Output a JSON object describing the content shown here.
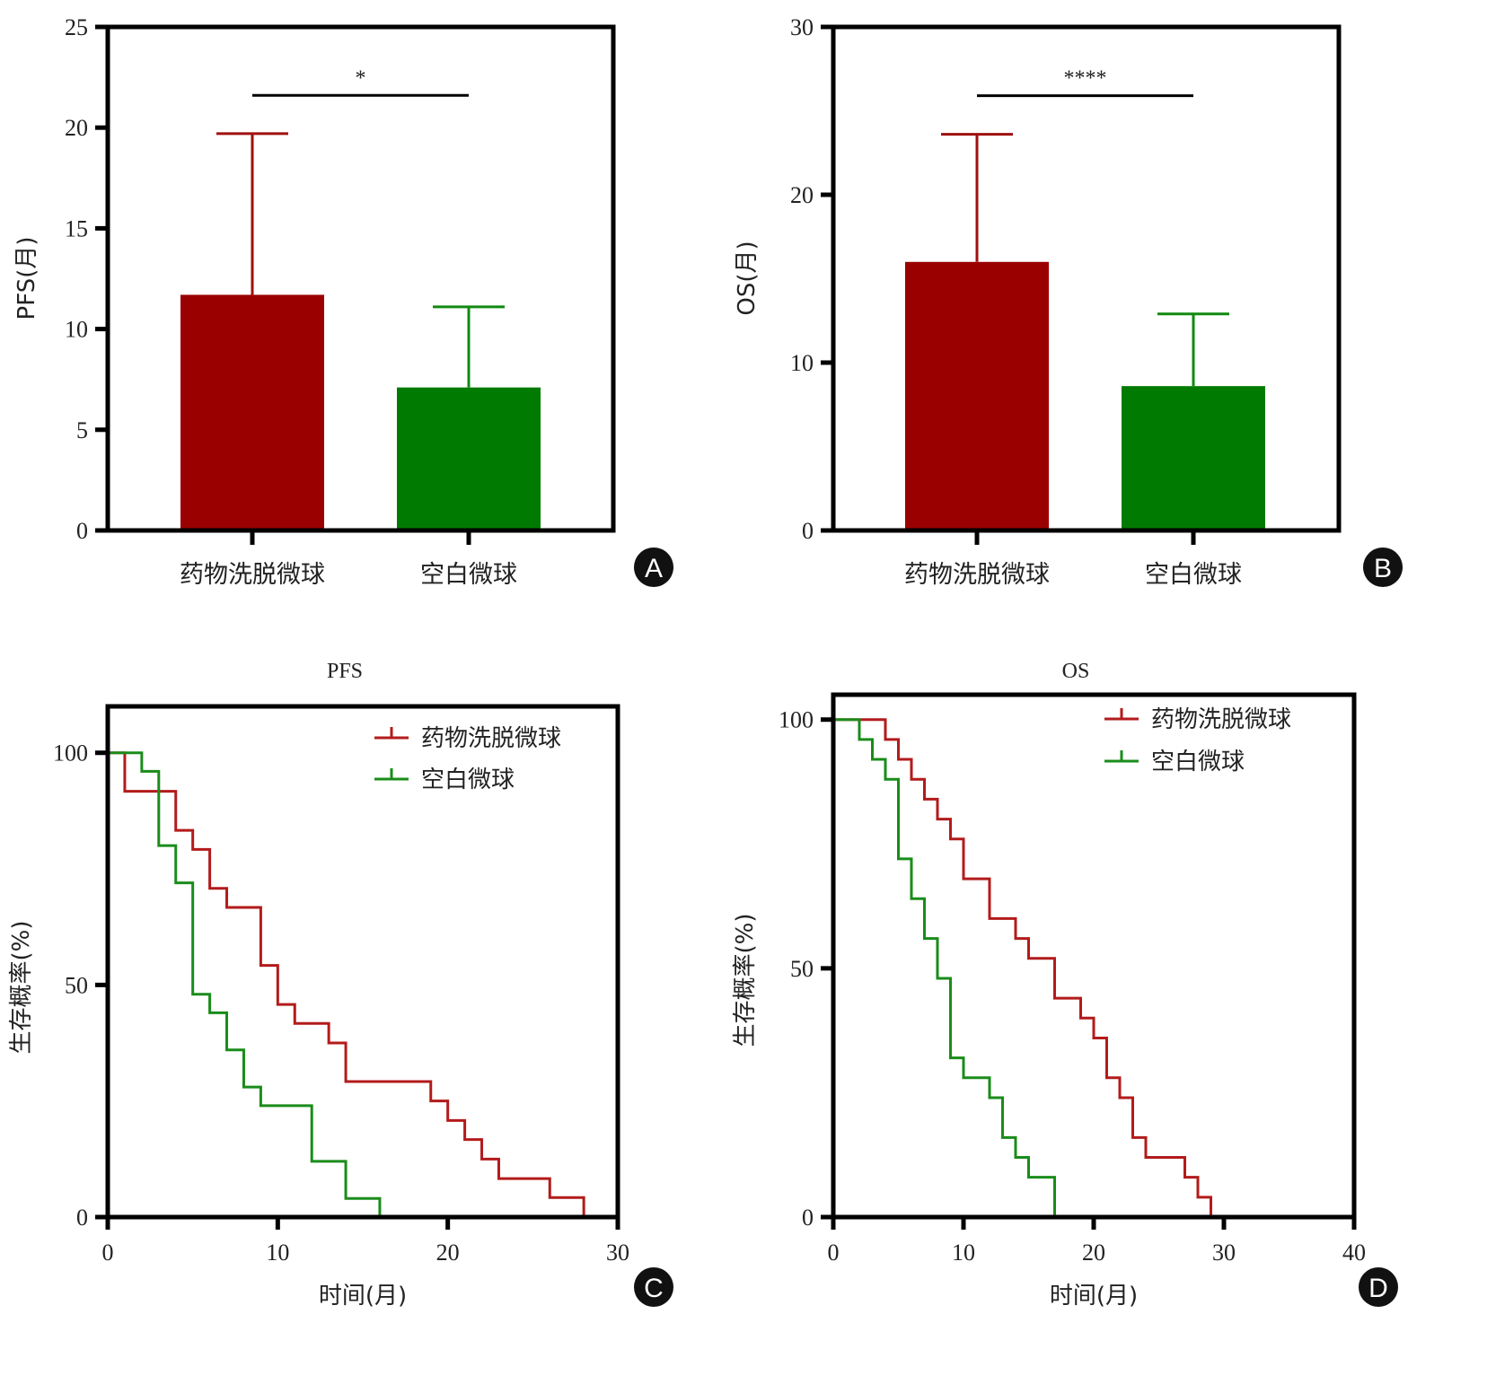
{
  "chart_data": [
    {
      "panel": "A",
      "type": "bar",
      "title": "",
      "xlabel": "",
      "ylabel": "PFS(月)",
      "ylim": [
        0,
        25
      ],
      "yticks": [
        0,
        5,
        10,
        15,
        20,
        25
      ],
      "categories": [
        "药物洗脱微球",
        "空白微球"
      ],
      "values": [
        11.7,
        7.1
      ],
      "error_upper": [
        19.7,
        11.1
      ],
      "colors": [
        "#9b0000",
        "#007a00"
      ],
      "error_colors": [
        "#a01010",
        "#108a10"
      ],
      "significance": {
        "label": "*",
        "y": 21.6
      }
    },
    {
      "panel": "B",
      "type": "bar",
      "title": "",
      "xlabel": "",
      "ylabel": "OS(月)",
      "ylim": [
        0,
        30
      ],
      "yticks": [
        0,
        10,
        20,
        30
      ],
      "categories": [
        "药物洗脱微球",
        "空白微球"
      ],
      "values": [
        16.0,
        8.6
      ],
      "error_upper": [
        23.6,
        12.9
      ],
      "colors": [
        "#9b0000",
        "#007a00"
      ],
      "error_colors": [
        "#a01010",
        "#108a10"
      ],
      "significance": {
        "label": "****",
        "y": 25.9
      }
    },
    {
      "panel": "C",
      "type": "line",
      "subtype": "kaplan-meier",
      "title": "PFS",
      "xlabel": "时间(月)",
      "ylabel": "生存概率(%)",
      "xlim": [
        0,
        30
      ],
      "ylim": [
        0,
        110
      ],
      "xticks": [
        0,
        10,
        20,
        30
      ],
      "yticks": [
        0,
        50,
        100
      ],
      "legend_position": "top-right",
      "series": [
        {
          "name": "药物洗脱微球",
          "color": "#b31b1b",
          "steps": [
            [
              0,
              100
            ],
            [
              1,
              91.7
            ],
            [
              4,
              83.3
            ],
            [
              5,
              79.2
            ],
            [
              6,
              70.8
            ],
            [
              7,
              66.7
            ],
            [
              9,
              54.2
            ],
            [
              10,
              45.8
            ],
            [
              11,
              41.7
            ],
            [
              13,
              37.5
            ],
            [
              14,
              29.2
            ],
            [
              19,
              25
            ],
            [
              20,
              20.8
            ],
            [
              21,
              16.7
            ],
            [
              22,
              12.5
            ],
            [
              23,
              8.3
            ],
            [
              26,
              4.2
            ],
            [
              28,
              0
            ]
          ]
        },
        {
          "name": "空白微球",
          "color": "#1a8c1a",
          "steps": [
            [
              0,
              100
            ],
            [
              2,
              96
            ],
            [
              3,
              80
            ],
            [
              4,
              72
            ],
            [
              5,
              48
            ],
            [
              6,
              44
            ],
            [
              7,
              36
            ],
            [
              8,
              28
            ],
            [
              9,
              24
            ],
            [
              12,
              12
            ],
            [
              14,
              4
            ],
            [
              16,
              0
            ]
          ]
        }
      ]
    },
    {
      "panel": "D",
      "type": "line",
      "subtype": "kaplan-meier",
      "title": "OS",
      "xlabel": "时间(月)",
      "ylabel": "生存概率(%)",
      "xlim": [
        0,
        40
      ],
      "ylim": [
        0,
        105
      ],
      "xticks": [
        0,
        10,
        20,
        30,
        40
      ],
      "yticks": [
        0,
        50,
        100
      ],
      "legend_position": "top-right",
      "series": [
        {
          "name": "药物洗脱微球",
          "color": "#b31b1b",
          "steps": [
            [
              0,
              100
            ],
            [
              4,
              96
            ],
            [
              5,
              92
            ],
            [
              6,
              88
            ],
            [
              7,
              84
            ],
            [
              8,
              80
            ],
            [
              9,
              76
            ],
            [
              10,
              68
            ],
            [
              12,
              60
            ],
            [
              14,
              56
            ],
            [
              15,
              52
            ],
            [
              17,
              44
            ],
            [
              19,
              40
            ],
            [
              20,
              36
            ],
            [
              21,
              28
            ],
            [
              22,
              24
            ],
            [
              23,
              16
            ],
            [
              24,
              12
            ],
            [
              27,
              8
            ],
            [
              28,
              4
            ],
            [
              29,
              0
            ]
          ]
        },
        {
          "name": "空白微球",
          "color": "#1a8c1a",
          "steps": [
            [
              0,
              100
            ],
            [
              2,
              96
            ],
            [
              3,
              92
            ],
            [
              4,
              88
            ],
            [
              5,
              72
            ],
            [
              6,
              64
            ],
            [
              7,
              56
            ],
            [
              8,
              48
            ],
            [
              9,
              32
            ],
            [
              10,
              28
            ],
            [
              12,
              24
            ],
            [
              13,
              16
            ],
            [
              14,
              12
            ],
            [
              15,
              8
            ],
            [
              17,
              0
            ]
          ]
        }
      ]
    }
  ],
  "panels": {
    "A": {
      "badge": "A"
    },
    "B": {
      "badge": "B"
    },
    "C": {
      "badge": "C"
    },
    "D": {
      "badge": "D"
    }
  }
}
